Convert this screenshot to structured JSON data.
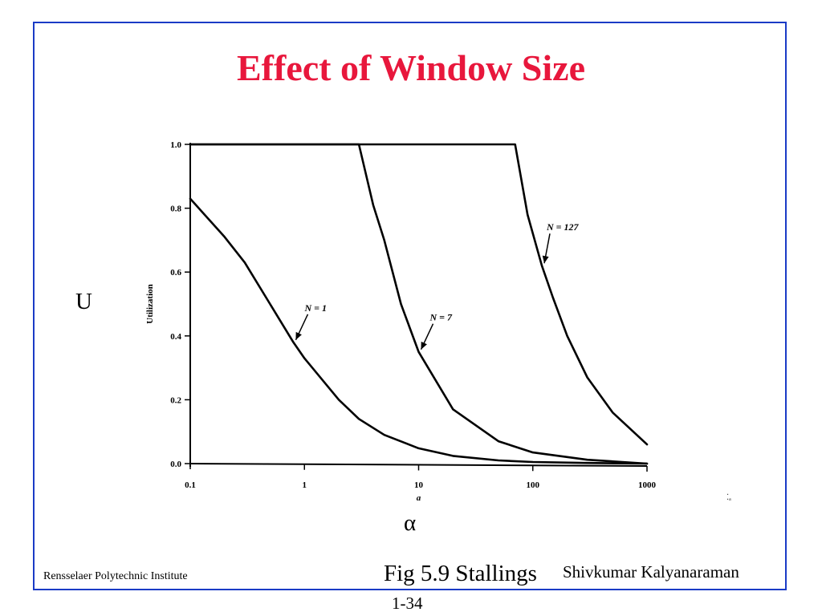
{
  "slide": {
    "title": "Effect of Window Size",
    "u_label": "U",
    "alpha_label": "α",
    "scan_mark": "⁚ₐ",
    "footer_left": "Rensselaer Polytechnic Institute",
    "footer_figure": "Fig 5.9 Stallings",
    "footer_author": "Shivkumar Kalyanaraman",
    "page_number": "1-34",
    "frame_color": "#1a3bc6",
    "title_color": "#e8173c"
  },
  "chart_data": {
    "type": "line",
    "title": "",
    "xlabel": "a",
    "ylabel": "Utilization",
    "x_scale": "log",
    "xlim": [
      0.1,
      1000
    ],
    "ylim": [
      0.0,
      1.0
    ],
    "x_ticks": [
      "0.1",
      "1",
      "10",
      "100",
      "1000"
    ],
    "y_ticks": [
      "0.0",
      "0.2",
      "0.4",
      "0.6",
      "0.8",
      "1.0"
    ],
    "grid": false,
    "series": [
      {
        "name": "N = 1",
        "points": [
          [
            0.1,
            0.83
          ],
          [
            0.2,
            0.71
          ],
          [
            0.3,
            0.63
          ],
          [
            0.5,
            0.5
          ],
          [
            0.8,
            0.38
          ],
          [
            1,
            0.33
          ],
          [
            2,
            0.2
          ],
          [
            3,
            0.14
          ],
          [
            5,
            0.09
          ],
          [
            10,
            0.048
          ],
          [
            20,
            0.024
          ],
          [
            50,
            0.01
          ],
          [
            100,
            0.005
          ],
          [
            300,
            0.002
          ],
          [
            1000,
            0.0
          ]
        ]
      },
      {
        "name": "N = 7",
        "points": [
          [
            0.1,
            1.0
          ],
          [
            3,
            1.0
          ],
          [
            4,
            0.81
          ],
          [
            5,
            0.7
          ],
          [
            7,
            0.5
          ],
          [
            10,
            0.35
          ],
          [
            20,
            0.17
          ],
          [
            50,
            0.07
          ],
          [
            100,
            0.035
          ],
          [
            300,
            0.012
          ],
          [
            1000,
            0.0
          ]
        ]
      },
      {
        "name": "N = 127",
        "points": [
          [
            0.1,
            1.0
          ],
          [
            70,
            1.0
          ],
          [
            90,
            0.78
          ],
          [
            120,
            0.62
          ],
          [
            150,
            0.52
          ],
          [
            200,
            0.4
          ],
          [
            300,
            0.27
          ],
          [
            500,
            0.16
          ],
          [
            1000,
            0.06
          ]
        ]
      }
    ],
    "annotations": [
      {
        "text": "N = 1",
        "series": 0,
        "x": 0.8,
        "y": 0.38
      },
      {
        "text": "N = 7",
        "series": 1,
        "x": 10,
        "y": 0.35
      },
      {
        "text": "N = 127",
        "series": 2,
        "x": 120,
        "y": 0.62
      }
    ]
  }
}
